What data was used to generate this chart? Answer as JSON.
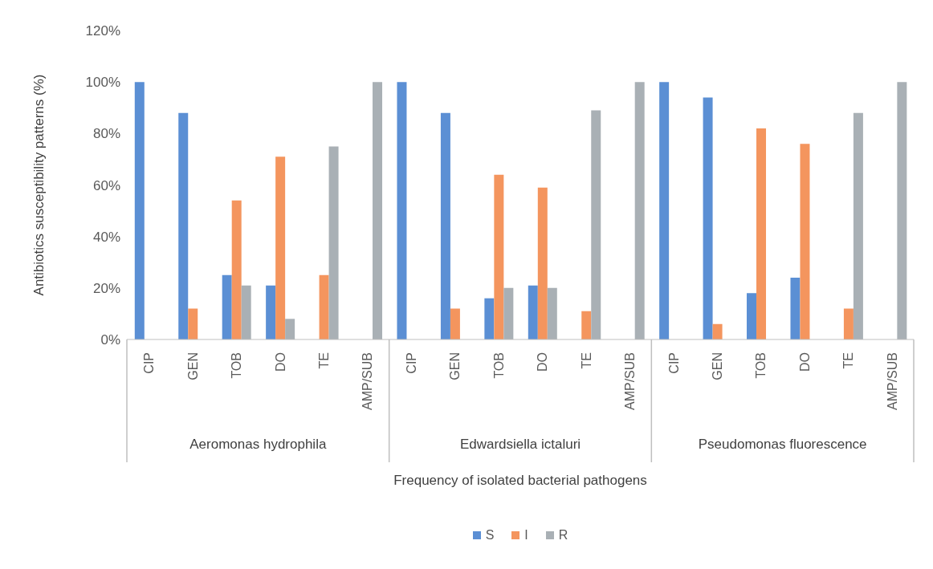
{
  "chart_data": {
    "type": "bar",
    "ylabel": "Antibiotics susceptibility patterns (%)",
    "xlabel": "Frequency of isolated bacterial pathogens",
    "categories": [
      "CIP",
      "GEN",
      "TOB",
      "DO",
      "TE",
      "AMP/SUB",
      "CIP",
      "GEN",
      "TOB",
      "DO",
      "TE",
      "AMP/SUB",
      "CIP",
      "GEN",
      "TOB",
      "DO",
      "TE",
      "AMP/SUB"
    ],
    "annotations": [
      "Aeromonas hydrophila",
      "Edwardsiella ictaluri",
      "Pseudomonas fluorescence"
    ],
    "series": [
      {
        "name": "S",
        "color": "#5b8fd4",
        "values": [
          100,
          88,
          25,
          21,
          0,
          0,
          100,
          88,
          16,
          21,
          0,
          0,
          100,
          94,
          18,
          24,
          0,
          0
        ]
      },
      {
        "name": "I",
        "color": "#f4955e",
        "values": [
          0,
          12,
          54,
          71,
          25,
          0,
          0,
          12,
          64,
          59,
          11,
          0,
          0,
          6,
          82,
          76,
          12,
          0
        ]
      },
      {
        "name": "R",
        "color": "#a9b0b5",
        "values": [
          0,
          0,
          21,
          8,
          75,
          100,
          0,
          0,
          20,
          20,
          89,
          100,
          0,
          0,
          0,
          0,
          88,
          100
        ]
      }
    ],
    "ylim": [
      0,
      120
    ],
    "yticks": [
      {
        "value": 0,
        "label": "0%"
      },
      {
        "value": 20,
        "label": "20%"
      },
      {
        "value": 40,
        "label": "40%"
      },
      {
        "value": 60,
        "label": "60%"
      },
      {
        "value": 80,
        "label": "80%"
      },
      {
        "value": 100,
        "label": "100%"
      },
      {
        "value": 120,
        "label": "120%"
      }
    ],
    "legend": "bottom"
  }
}
